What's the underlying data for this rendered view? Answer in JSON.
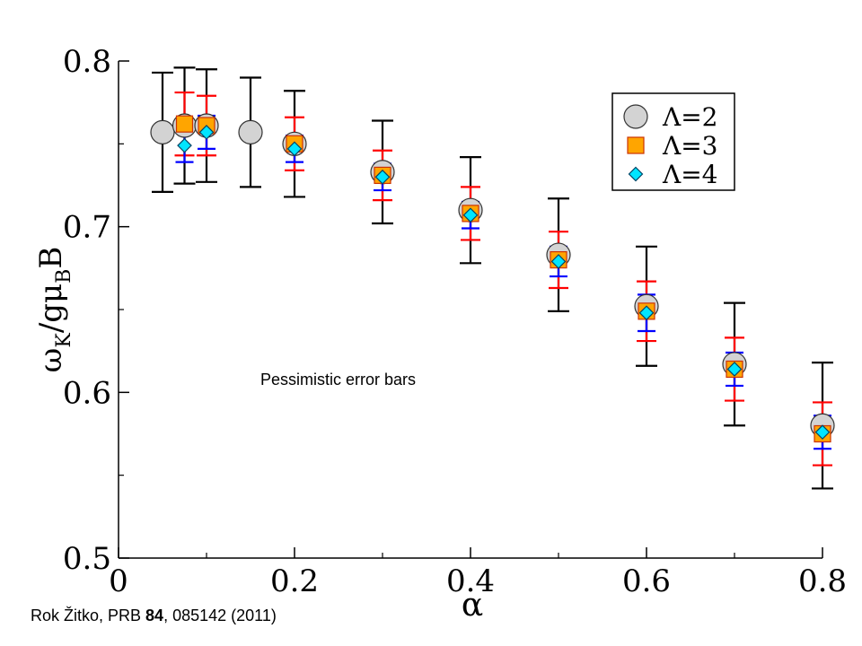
{
  "chart_data": {
    "type": "scatter",
    "title": "",
    "xlabel": "α",
    "ylabel_parts": {
      "omega": "ω",
      "k_sub": "K",
      "slash_g": "/g",
      "mu": "μ",
      "b_sub": "B",
      "b": "B"
    },
    "xlim": [
      0,
      0.8
    ],
    "ylim": [
      0.5,
      0.8
    ],
    "x_ticks": [
      0,
      0.2,
      0.4,
      0.6,
      0.8
    ],
    "x_tick_labels": [
      "0",
      "0.2",
      "0.4",
      "0.6",
      "0.8"
    ],
    "x_minor_ticks": [
      0.1,
      0.3,
      0.5,
      0.7
    ],
    "y_ticks": [
      0.5,
      0.6,
      0.7,
      0.8
    ],
    "y_tick_labels": [
      "0.5",
      "0.6",
      "0.7",
      "0.8"
    ],
    "y_minor_ticks": [
      0.55,
      0.65,
      0.75
    ],
    "legend_position": "top-right",
    "annotation": "Pessimistic error bars",
    "series": [
      {
        "name": "Λ=2",
        "marker": "circle",
        "fill": "#d3d3d3",
        "error_color": "#000000",
        "points": [
          {
            "x": 0.05,
            "y": 0.757,
            "err": 0.036
          },
          {
            "x": 0.075,
            "y": 0.761,
            "err": 0.035
          },
          {
            "x": 0.1,
            "y": 0.761,
            "err": 0.034
          },
          {
            "x": 0.15,
            "y": 0.757,
            "err": 0.033
          },
          {
            "x": 0.2,
            "y": 0.75,
            "err": 0.032
          },
          {
            "x": 0.3,
            "y": 0.733,
            "err": 0.031
          },
          {
            "x": 0.4,
            "y": 0.71,
            "err": 0.032
          },
          {
            "x": 0.5,
            "y": 0.683,
            "err": 0.034
          },
          {
            "x": 0.6,
            "y": 0.652,
            "err": 0.036
          },
          {
            "x": 0.7,
            "y": 0.617,
            "err": 0.037
          },
          {
            "x": 0.8,
            "y": 0.58,
            "err": 0.038
          }
        ]
      },
      {
        "name": "Λ=3",
        "marker": "square",
        "fill": "#ffa500",
        "error_color": "#ff0000",
        "points": [
          {
            "x": 0.075,
            "y": 0.762,
            "err": 0.019
          },
          {
            "x": 0.1,
            "y": 0.761,
            "err": 0.018
          },
          {
            "x": 0.2,
            "y": 0.75,
            "err": 0.016
          },
          {
            "x": 0.3,
            "y": 0.731,
            "err": 0.015
          },
          {
            "x": 0.4,
            "y": 0.708,
            "err": 0.016
          },
          {
            "x": 0.5,
            "y": 0.68,
            "err": 0.017
          },
          {
            "x": 0.6,
            "y": 0.649,
            "err": 0.018
          },
          {
            "x": 0.7,
            "y": 0.614,
            "err": 0.019
          },
          {
            "x": 0.8,
            "y": 0.575,
            "err": 0.019
          }
        ]
      },
      {
        "name": "Λ=4",
        "marker": "diamond",
        "fill": "#00e5ff",
        "error_color": "#0000ff",
        "points": [
          {
            "x": 0.075,
            "y": 0.749,
            "err": 0.01
          },
          {
            "x": 0.1,
            "y": 0.757,
            "err": 0.01
          },
          {
            "x": 0.2,
            "y": 0.747,
            "err": 0.008
          },
          {
            "x": 0.3,
            "y": 0.73,
            "err": 0.008
          },
          {
            "x": 0.4,
            "y": 0.707,
            "err": 0.008
          },
          {
            "x": 0.5,
            "y": 0.679,
            "err": 0.009
          },
          {
            "x": 0.6,
            "y": 0.648,
            "err": 0.011
          },
          {
            "x": 0.7,
            "y": 0.614,
            "err": 0.01
          },
          {
            "x": 0.8,
            "y": 0.576,
            "err": 0.01
          }
        ]
      }
    ]
  },
  "citation": {
    "prefix": "Rok Žitko, PRB ",
    "volume": "84",
    "suffix": ", 085142 (2011)"
  }
}
